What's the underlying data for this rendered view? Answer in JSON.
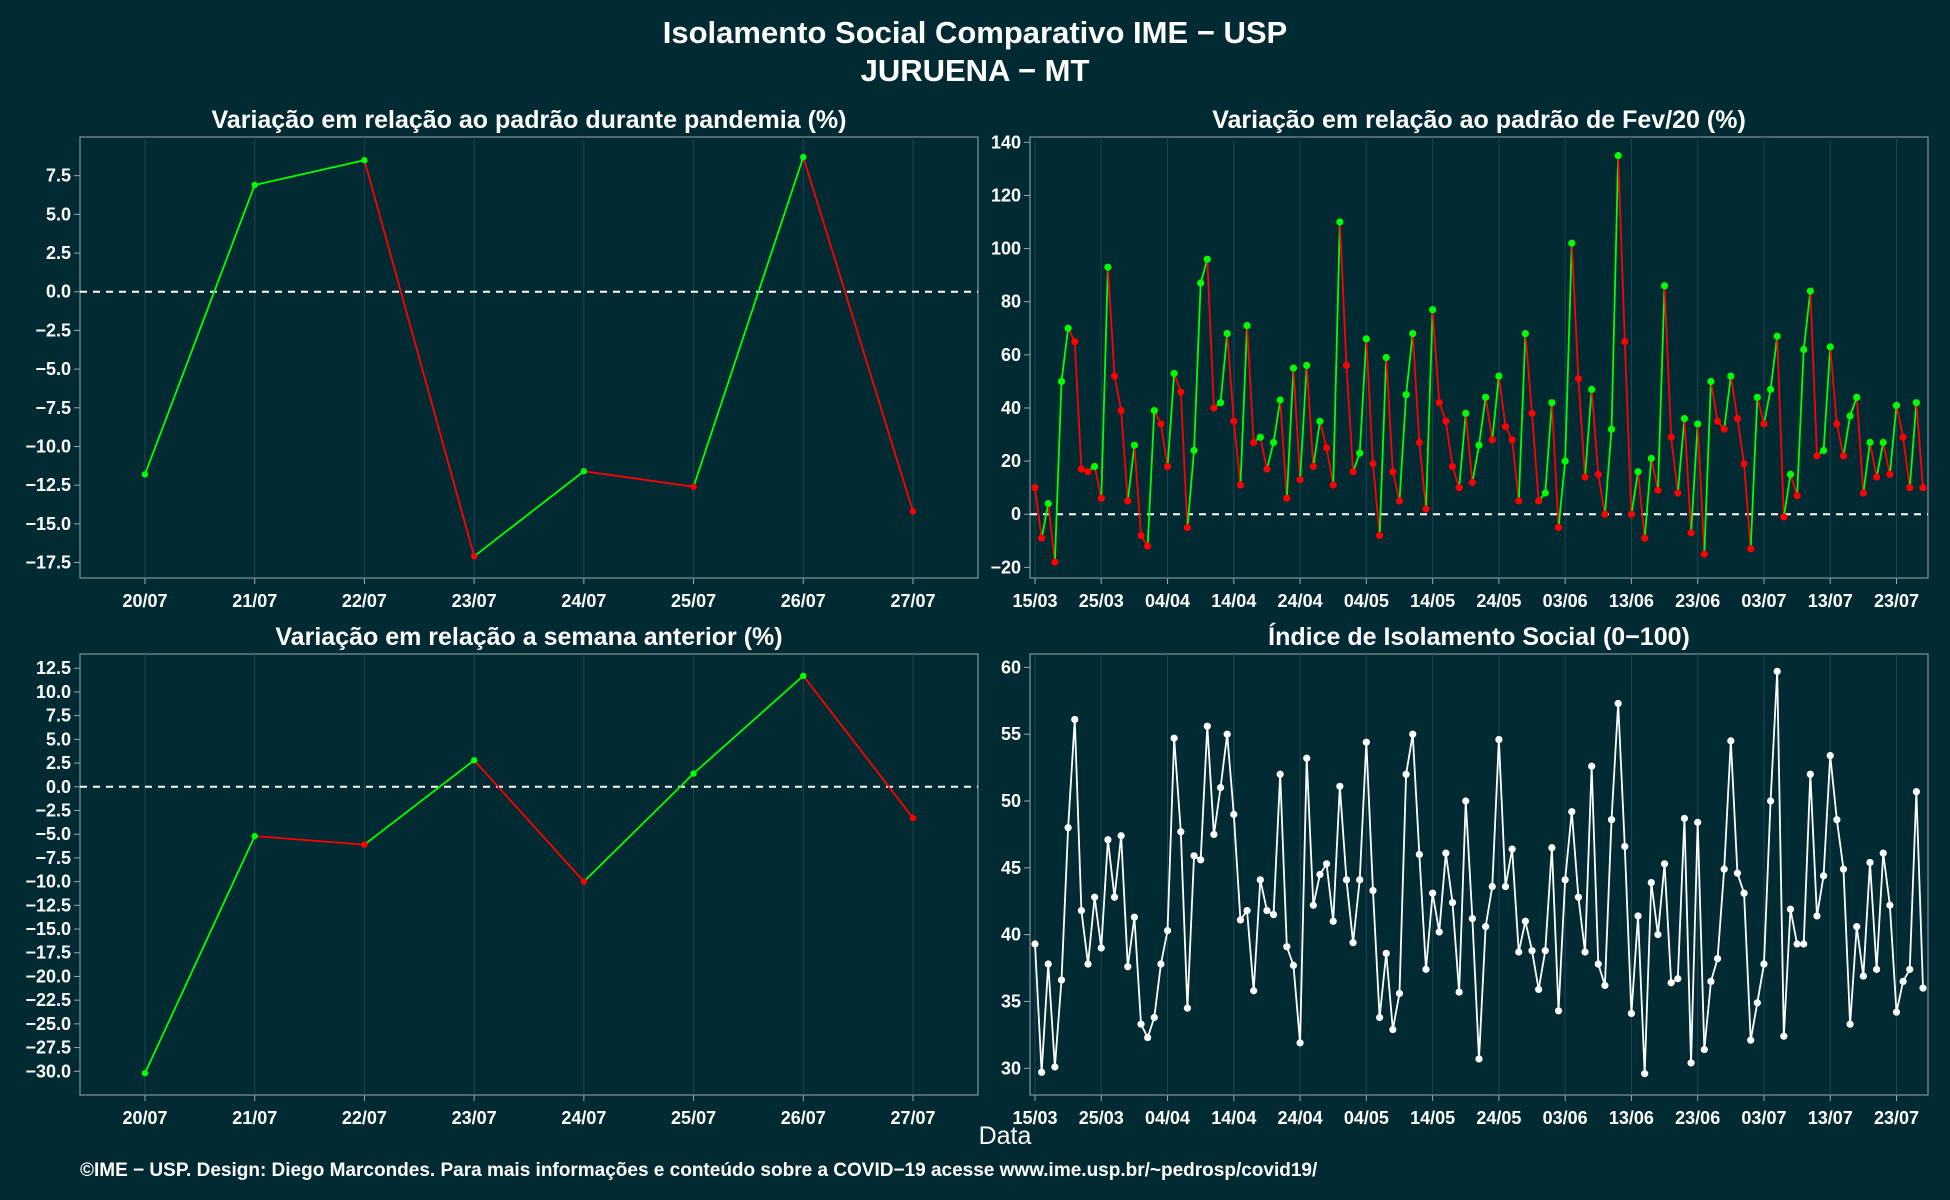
{
  "title": "Isolamento Social Comparativo IME − USP",
  "subtitle": "JURUENA − MT",
  "xlabel": "Data",
  "caption": "©IME − USP. Design: Diego Marcondes. Para mais informações e conteúdo sobre a COVID−19 acesse www.ime.usp.br/~pedrosp/covid19/",
  "colors": {
    "background": "#022a33",
    "panel": "#022a33",
    "up": "#00ff00",
    "down": "#ff0000",
    "index": "#ffffff",
    "grid": "#1b4650",
    "axis": "#9aa9ad"
  },
  "chart_data": [
    {
      "type": "line",
      "title": "Variação em relação ao padrão durante pandemia (%)",
      "categories": [
        "20/07",
        "21/07",
        "22/07",
        "23/07",
        "24/07",
        "25/07",
        "26/07",
        "27/07"
      ],
      "values": [
        -11.8,
        6.9,
        8.5,
        -17.1,
        -11.6,
        -12.6,
        8.7,
        -14.2
      ],
      "ylim": [
        -18.5,
        10
      ],
      "yticks": [
        7.5,
        5.0,
        2.5,
        0.0,
        -2.5,
        -5.0,
        -7.5,
        -10.0,
        -12.5,
        -15.0,
        -17.5
      ],
      "ytick_labels": [
        "7.5",
        "5.0",
        "2.5",
        "0.0",
        "−2.5",
        "−5.0",
        "−7.5",
        "−10.0",
        "−12.5",
        "−15.0",
        "−17.5"
      ],
      "reference_line": 0,
      "coloring": "green when rising, red when falling"
    },
    {
      "type": "line",
      "title": "Variação em relação ao padrão de Fev/20 (%)",
      "start_date": "15/03",
      "xtick_labels": [
        "15/03",
        "25/03",
        "04/04",
        "14/04",
        "24/04",
        "04/05",
        "14/05",
        "24/05",
        "03/06",
        "13/06",
        "23/06",
        "03/07",
        "13/07",
        "23/07"
      ],
      "values": [
        10,
        -9,
        4,
        -18,
        50,
        70,
        65,
        17,
        16,
        18,
        6,
        93,
        52,
        39,
        5,
        26,
        -8,
        -12,
        39,
        34,
        18,
        53,
        46,
        -5,
        24,
        87,
        96,
        40,
        42,
        68,
        35,
        11,
        71,
        27,
        29,
        17,
        27,
        43,
        6,
        55,
        13,
        56,
        18,
        35,
        25,
        11,
        110,
        56,
        16,
        23,
        66,
        19,
        -8,
        59,
        16,
        5,
        45,
        68,
        27,
        2,
        77,
        42,
        35,
        18,
        10,
        38,
        12,
        26,
        44,
        28,
        52,
        33,
        28,
        5,
        68,
        38,
        5,
        8,
        42,
        -5,
        20,
        102,
        51,
        14,
        47,
        15,
        0,
        32,
        135,
        65,
        0,
        16,
        -9,
        21,
        9,
        86,
        29,
        8,
        36,
        -7,
        34,
        -15,
        50,
        35,
        32,
        52,
        36,
        19,
        -13,
        44,
        34,
        47,
        67,
        -1,
        15,
        7,
        62,
        84,
        22,
        24,
        63,
        34,
        22,
        37,
        44,
        8,
        27,
        14,
        27,
        15,
        41,
        29,
        10,
        42,
        10
      ],
      "ylim": [
        -24,
        142
      ],
      "yticks": [
        140,
        120,
        100,
        80,
        60,
        40,
        20,
        0,
        -20
      ],
      "ytick_labels": [
        "140",
        "120",
        "100",
        "80",
        "60",
        "40",
        "20",
        "0",
        "−20"
      ],
      "reference_line": 0,
      "coloring": "green when rising, red when falling"
    },
    {
      "type": "line",
      "title": "Variação em relação a semana anterior (%)",
      "categories": [
        "20/07",
        "21/07",
        "22/07",
        "23/07",
        "24/07",
        "25/07",
        "26/07",
        "27/07"
      ],
      "values": [
        -30.2,
        -5.2,
        -6.1,
        2.8,
        -10.0,
        1.4,
        11.7,
        -3.3
      ],
      "ylim": [
        -32.5,
        14
      ],
      "yticks": [
        12.5,
        10.0,
        7.5,
        5.0,
        2.5,
        0.0,
        -2.5,
        -5.0,
        -7.5,
        -10.0,
        -12.5,
        -15.0,
        -17.5,
        -20.0,
        -22.5,
        -25.0,
        -27.5,
        -30.0
      ],
      "ytick_labels": [
        "12.5",
        "10.0",
        "7.5",
        "5.0",
        "2.5",
        "0.0",
        "−2.5",
        "−5.0",
        "−7.5",
        "−10.0",
        "−12.5",
        "−15.0",
        "−17.5",
        "−20.0",
        "−22.5",
        "−25.0",
        "−27.5",
        "−30.0"
      ],
      "reference_line": 0,
      "coloring": "green when rising, red when falling"
    },
    {
      "type": "line",
      "title": "Índice de Isolamento Social (0−100)",
      "start_date": "15/03",
      "xtick_labels": [
        "15/03",
        "25/03",
        "04/04",
        "14/04",
        "24/04",
        "04/05",
        "14/05",
        "24/05",
        "03/06",
        "13/06",
        "23/06",
        "03/07",
        "13/07",
        "23/07"
      ],
      "values": [
        39.3,
        29.7,
        37.8,
        30.1,
        36.6,
        48.0,
        56.1,
        41.8,
        37.8,
        42.8,
        39.0,
        47.1,
        42.8,
        47.4,
        37.6,
        41.3,
        33.3,
        32.3,
        33.8,
        37.8,
        40.3,
        54.7,
        47.7,
        34.5,
        45.9,
        45.6,
        55.6,
        47.5,
        51.0,
        55.0,
        49.0,
        41.1,
        41.8,
        35.8,
        44.1,
        41.8,
        41.5,
        52.0,
        39.1,
        37.7,
        31.9,
        53.2,
        42.2,
        44.5,
        45.3,
        41.0,
        51.1,
        44.1,
        39.4,
        44.1,
        54.4,
        43.3,
        33.8,
        38.6,
        32.9,
        35.6,
        52.0,
        55.0,
        46.0,
        37.4,
        43.1,
        40.2,
        46.1,
        42.4,
        35.7,
        50.0,
        41.2,
        30.7,
        40.6,
        43.6,
        54.6,
        43.6,
        46.4,
        38.7,
        41.0,
        38.8,
        35.9,
        38.8,
        46.5,
        34.3,
        44.1,
        49.2,
        42.8,
        38.7,
        52.6,
        37.8,
        36.2,
        48.6,
        57.3,
        46.6,
        34.1,
        41.4,
        29.6,
        43.9,
        40.0,
        45.3,
        36.4,
        36.7,
        48.7,
        30.4,
        48.4,
        31.4,
        36.5,
        38.2,
        44.9,
        54.5,
        44.6,
        43.1,
        32.1,
        34.9,
        37.8,
        50.0,
        59.7,
        32.4,
        41.9,
        39.3,
        39.3,
        52.0,
        41.4,
        44.4,
        53.4,
        48.6,
        44.9,
        33.3,
        40.6,
        36.9,
        45.4,
        37.4,
        46.1,
        42.2,
        34.2,
        36.5,
        37.4,
        50.7,
        36.0
      ],
      "ylim": [
        28,
        61
      ],
      "yticks": [
        60,
        55,
        50,
        45,
        40,
        35,
        30
      ],
      "ytick_labels": [
        "60",
        "55",
        "50",
        "45",
        "40",
        "35",
        "30"
      ]
    }
  ]
}
